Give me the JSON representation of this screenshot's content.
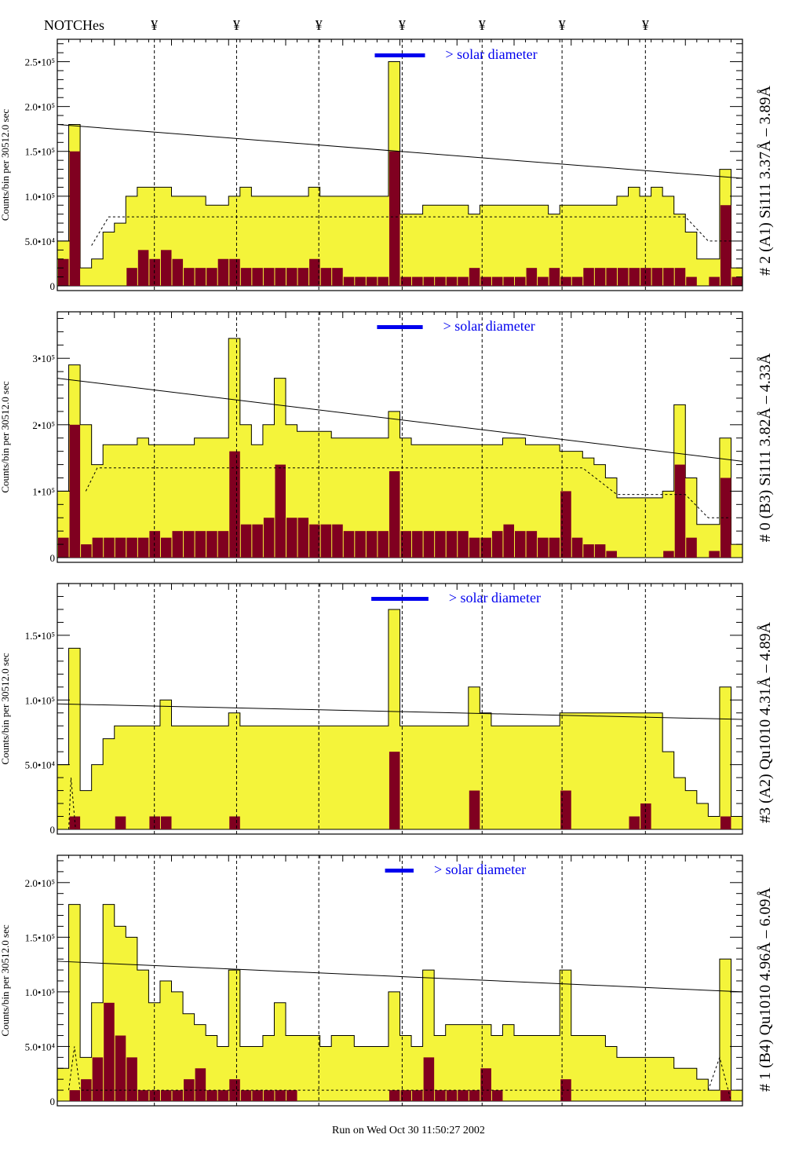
{
  "header": {
    "notches_label": "NOTCHes",
    "notch_symbol": "¥"
  },
  "footer": {
    "run_text": "Run on Wed Oct 30 11:50:27 2002"
  },
  "colors": {
    "total_fill": "#f4f43a",
    "component_fill": "#800020",
    "solar_bar": "#0000ee"
  },
  "chart_data": [
    {
      "type": "bar",
      "title": "# 2 (A1) Si111  3.37Å – 3.89Å",
      "ylabel": "Counts/bin per  30512.0 sec",
      "solar_label": "> solar diameter",
      "solar_range": [
        27.8,
        32.2
      ],
      "xlim": [
        0,
        60
      ],
      "ylim": [
        0,
        275000
      ],
      "yticks": [
        {
          "v": 0,
          "label": "0"
        },
        {
          "v": 50000,
          "label": "5.0•10⁴"
        },
        {
          "v": 100000,
          "label": "1.0•10⁵"
        },
        {
          "v": 150000,
          "label": "1.5•10⁵"
        },
        {
          "v": 200000,
          "label": "2.0•10⁵"
        },
        {
          "v": 250000,
          "label": "2.5•10⁵"
        }
      ],
      "notches": [
        8.5,
        15.7,
        22.9,
        30.2,
        37.2,
        44.2,
        51.5
      ],
      "total": [
        5,
        18,
        2,
        3,
        6,
        7,
        10,
        11,
        11,
        11,
        10,
        10,
        10,
        9,
        9,
        10,
        11,
        10,
        10,
        10,
        10,
        10,
        11,
        10,
        10,
        10,
        10,
        10,
        10,
        25,
        8,
        8,
        9,
        9,
        9,
        9,
        8,
        9,
        9,
        9,
        9,
        9,
        9,
        8,
        9,
        9,
        9,
        9,
        9,
        10,
        11,
        10,
        11,
        10,
        8,
        6,
        3,
        3,
        13,
        2
      ],
      "component": [
        3,
        15,
        0,
        0,
        0,
        0,
        2,
        4,
        3,
        4,
        3,
        2,
        2,
        2,
        3,
        3,
        2,
        2,
        2,
        2,
        2,
        2,
        3,
        2,
        2,
        1,
        1,
        1,
        1,
        15,
        1,
        1,
        1,
        1,
        1,
        1,
        2,
        1,
        1,
        1,
        1,
        2,
        1,
        2,
        1,
        1,
        2,
        2,
        2,
        2,
        2,
        2,
        2,
        2,
        2,
        1,
        0,
        1,
        9,
        1
      ],
      "value_unit": 10000,
      "trend_line": [
        [
          0,
          180000
        ],
        [
          60,
          120000
        ]
      ],
      "dashed_line": [
        [
          3,
          45000
        ],
        [
          4.5,
          77000
        ],
        [
          55,
          77000
        ],
        [
          57,
          50000
        ],
        [
          59,
          50000
        ]
      ]
    },
    {
      "type": "bar",
      "title": "# 0 (B3) Si111  3.82Å – 4.33Å",
      "ylabel": "Counts/bin per  30512.0 sec",
      "solar_label": "> solar diameter",
      "solar_range": [
        28.0,
        32.0
      ],
      "xlim": [
        0,
        60
      ],
      "ylim": [
        0,
        370000
      ],
      "yticks": [
        {
          "v": 0,
          "label": "0"
        },
        {
          "v": 100000,
          "label": "1•10⁵"
        },
        {
          "v": 200000,
          "label": "2•10⁵"
        },
        {
          "v": 300000,
          "label": "3•10⁵"
        }
      ],
      "notches": [
        8.5,
        15.7,
        22.9,
        30.2,
        37.2,
        44.2,
        51.5
      ],
      "total": [
        10,
        29,
        20,
        14,
        17,
        17,
        17,
        18,
        17,
        17,
        17,
        17,
        18,
        18,
        18,
        33,
        20,
        17,
        20,
        27,
        20,
        19,
        19,
        19,
        18,
        18,
        18,
        18,
        18,
        22,
        18,
        17,
        17,
        17,
        17,
        17,
        17,
        17,
        17,
        18,
        18,
        17,
        17,
        17,
        16,
        16,
        15,
        14,
        12,
        9,
        9,
        9,
        9,
        10,
        23,
        12,
        5,
        5,
        18,
        2
      ],
      "component": [
        3,
        20,
        2,
        3,
        3,
        3,
        3,
        3,
        4,
        3,
        4,
        4,
        4,
        4,
        4,
        16,
        5,
        5,
        6,
        14,
        6,
        6,
        5,
        5,
        5,
        4,
        4,
        4,
        4,
        13,
        4,
        4,
        4,
        4,
        4,
        4,
        3,
        3,
        4,
        5,
        4,
        4,
        3,
        3,
        10,
        3,
        2,
        2,
        1,
        0,
        0,
        0,
        0,
        1,
        14,
        3,
        0,
        1,
        12,
        0
      ],
      "value_unit": 10000,
      "trend_line": [
        [
          0,
          270000
        ],
        [
          60,
          145000
        ]
      ],
      "dashed_line": [
        [
          2.5,
          100000
        ],
        [
          3.5,
          135000
        ],
        [
          46,
          135000
        ],
        [
          49,
          95000
        ],
        [
          55,
          95000
        ],
        [
          57,
          60000
        ],
        [
          59,
          60000
        ]
      ]
    },
    {
      "type": "bar",
      "title": "#3 (A2) Qu1010  4.31Å – 4.89Å",
      "ylabel": "Counts/bin per  30512.0 sec",
      "solar_label": "> solar diameter",
      "solar_range": [
        27.5,
        32.5
      ],
      "xlim": [
        0,
        60
      ],
      "ylim": [
        0,
        190000
      ],
      "yticks": [
        {
          "v": 0,
          "label": "0"
        },
        {
          "v": 50000,
          "label": "5.0•10⁴"
        },
        {
          "v": 100000,
          "label": "1.0•10⁵"
        },
        {
          "v": 150000,
          "label": "1.5•10⁵"
        }
      ],
      "notches": [
        8.5,
        15.7,
        22.9,
        30.2,
        37.2,
        44.2,
        51.5
      ],
      "total": [
        5,
        14,
        3,
        5,
        7,
        8,
        8,
        8,
        8,
        10,
        8,
        8,
        8,
        8,
        8,
        9,
        8,
        8,
        8,
        8,
        8,
        8,
        8,
        8,
        8,
        8,
        8,
        8,
        8,
        17,
        8,
        8,
        8,
        8,
        8,
        8,
        11,
        9,
        8,
        8,
        8,
        8,
        8,
        8,
        9,
        9,
        9,
        9,
        9,
        9,
        9,
        9,
        9,
        6,
        4,
        3,
        2,
        1,
        11,
        1
      ],
      "component": [
        0,
        1,
        0,
        0,
        0,
        1,
        0,
        0,
        1,
        1,
        0,
        0,
        0,
        0,
        0,
        1,
        0,
        0,
        0,
        0,
        0,
        0,
        0,
        0,
        0,
        0,
        0,
        0,
        0,
        6,
        0,
        0,
        0,
        0,
        0,
        0,
        3,
        0,
        0,
        0,
        0,
        0,
        0,
        0,
        3,
        0,
        0,
        0,
        0,
        0,
        1,
        2,
        0,
        0,
        0,
        0,
        0,
        0,
        1,
        0
      ],
      "value_unit": 10000,
      "trend_line": [
        [
          0,
          97000
        ],
        [
          60,
          85000
        ]
      ],
      "dashed_line": [
        [
          1,
          0
        ],
        [
          1.2,
          40000
        ],
        [
          1.6,
          0
        ]
      ]
    },
    {
      "type": "bar",
      "title": "# 1 (B4) Qu1010 4.96Å – 6.09Å",
      "ylabel": "Counts/bin per  30512.0 sec",
      "solar_label": "> solar diameter",
      "solar_range": [
        28.7,
        31.2
      ],
      "xlim": [
        0,
        60
      ],
      "ylim": [
        0,
        225000
      ],
      "yticks": [
        {
          "v": 0,
          "label": "0"
        },
        {
          "v": 50000,
          "label": "5.0•10⁴"
        },
        {
          "v": 100000,
          "label": "1.0•10⁵"
        },
        {
          "v": 150000,
          "label": "1.5•10⁵"
        },
        {
          "v": 200000,
          "label": "2.0•10⁵"
        }
      ],
      "notches": [
        8.5,
        15.7,
        22.9,
        30.2,
        37.2,
        44.2,
        51.5
      ],
      "total": [
        3,
        18,
        4,
        9,
        18,
        16,
        15,
        12,
        9,
        11,
        10,
        8,
        7,
        6,
        5,
        12,
        5,
        5,
        6,
        9,
        6,
        6,
        6,
        5,
        6,
        6,
        5,
        5,
        5,
        10,
        6,
        5,
        12,
        6,
        7,
        7,
        7,
        7,
        6,
        7,
        6,
        6,
        6,
        6,
        12,
        6,
        6,
        6,
        5,
        4,
        4,
        4,
        4,
        4,
        3,
        3,
        2,
        1,
        13,
        1
      ],
      "component": [
        0,
        1,
        2,
        4,
        9,
        6,
        4,
        1,
        1,
        1,
        1,
        2,
        3,
        1,
        1,
        2,
        1,
        1,
        1,
        1,
        1,
        0,
        0,
        0,
        0,
        0,
        0,
        0,
        0,
        1,
        1,
        1,
        4,
        1,
        1,
        1,
        1,
        3,
        1,
        0,
        0,
        0,
        0,
        0,
        2,
        0,
        0,
        0,
        0,
        0,
        0,
        0,
        0,
        0,
        0,
        0,
        0,
        0,
        1,
        0
      ],
      "value_unit": 10000,
      "trend_line": [
        [
          0,
          128000
        ],
        [
          60,
          100000
        ]
      ],
      "dashed_line": [
        [
          1,
          10000
        ],
        [
          1.5,
          50000
        ],
        [
          2,
          10000
        ],
        [
          57,
          10000
        ],
        [
          58,
          40000
        ],
        [
          59,
          0
        ]
      ]
    }
  ]
}
